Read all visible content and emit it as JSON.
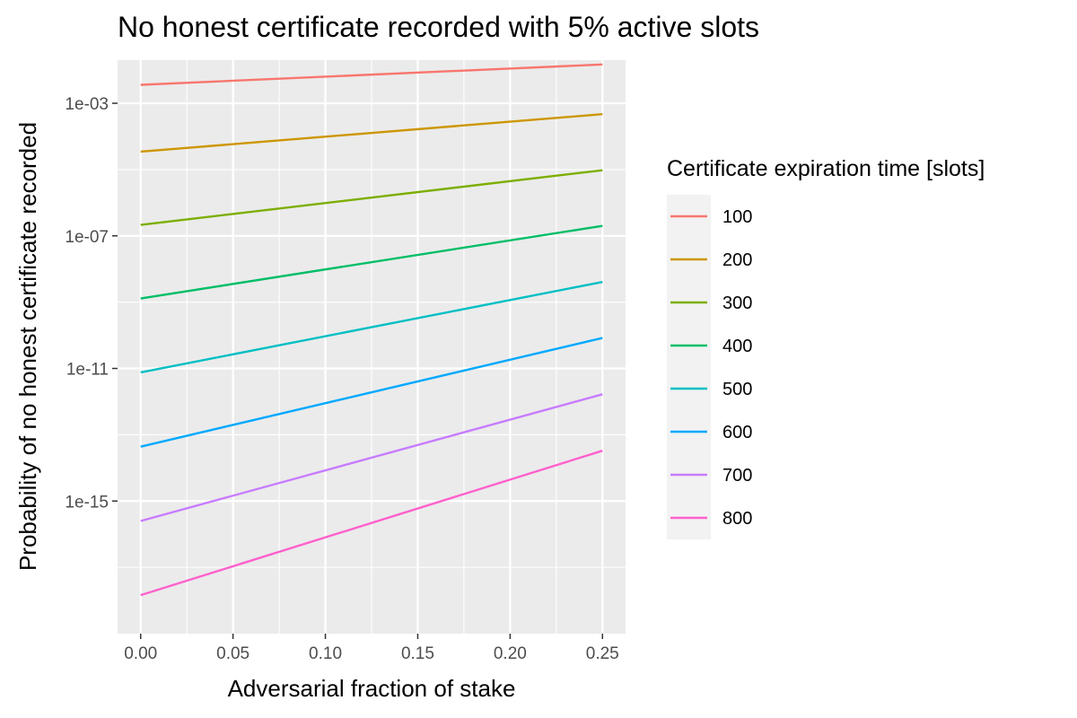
{
  "chart_data": {
    "type": "line",
    "title": "No honest certificate recorded with 5% active slots",
    "xlabel": "Adversarial fraction of stake",
    "ylabel": "Probability of no honest certificate recorded",
    "x_scale": "linear",
    "y_scale": "log10",
    "xlim": [
      -0.0125,
      0.2625
    ],
    "ylim": [
      1e-19,
      0.02
    ],
    "x_ticks": [
      0.0,
      0.05,
      0.1,
      0.15,
      0.2,
      0.25
    ],
    "x_tick_labels": [
      "0.00",
      "0.05",
      "0.10",
      "0.15",
      "0.20",
      "0.25"
    ],
    "y_ticks": [
      1e-15,
      1e-11,
      1e-07,
      0.001
    ],
    "y_tick_labels": [
      "1e-15",
      "1e-11",
      "1e-07",
      "1e-03"
    ],
    "grid": true,
    "legend": {
      "title": "Certificate expiration time [slots]",
      "position": "right"
    },
    "x": [
      0.0,
      0.25
    ],
    "series": [
      {
        "name": "100",
        "color": "#F8766D",
        "values": [
          0.0036,
          0.0148
        ]
      },
      {
        "name": "200",
        "color": "#CD9600",
        "values": [
          3.47e-05,
          0.000468
        ]
      },
      {
        "name": "300",
        "color": "#7CAE00",
        "values": [
          2.14e-07,
          9.55e-06
        ]
      },
      {
        "name": "400",
        "color": "#00BE67",
        "values": [
          1.29e-09,
          2e-07
        ]
      },
      {
        "name": "500",
        "color": "#00BFC4",
        "values": [
          7.6e-12,
          4.07e-09
        ]
      },
      {
        "name": "600",
        "color": "#00A9FF",
        "values": [
          4.37e-14,
          8.3e-11
        ]
      },
      {
        "name": "700",
        "color": "#C77CFF",
        "values": [
          2.5e-16,
          1.66e-12
        ]
      },
      {
        "name": "800",
        "color": "#FF61CC",
        "values": [
          1.45e-18,
          3.3e-14
        ]
      }
    ]
  }
}
